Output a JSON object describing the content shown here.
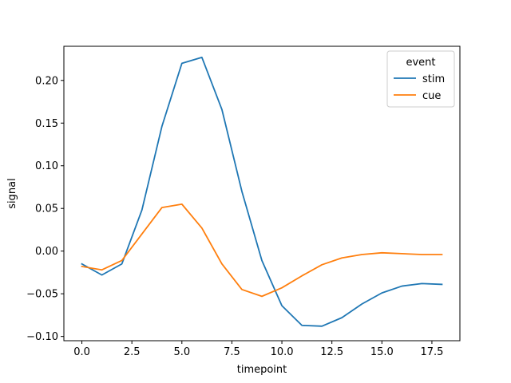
{
  "chart_data": {
    "type": "line",
    "title": "",
    "xlabel": "timepoint",
    "ylabel": "signal",
    "xlim": [
      -0.9,
      18.9
    ],
    "ylim": [
      -0.105,
      0.24
    ],
    "x_ticks": [
      0.0,
      2.5,
      5.0,
      7.5,
      10.0,
      12.5,
      15.0,
      17.5
    ],
    "x_tick_labels": [
      "0.0",
      "2.5",
      "5.0",
      "7.5",
      "10.0",
      "12.5",
      "15.0",
      "17.5"
    ],
    "y_ticks": [
      -0.1,
      -0.05,
      0.0,
      0.05,
      0.1,
      0.15,
      0.2
    ],
    "y_tick_labels": [
      "−0.10",
      "−0.05",
      "0.00",
      "0.05",
      "0.10",
      "0.15",
      "0.20"
    ],
    "grid": false,
    "legend": {
      "title": "event",
      "placement": "top-right"
    },
    "x": [
      0,
      1,
      2,
      3,
      4,
      5,
      6,
      7,
      8,
      9,
      10,
      11,
      12,
      13,
      14,
      15,
      16,
      17,
      18
    ],
    "series": [
      {
        "name": "stim",
        "color": "#1f77b4",
        "values": [
          -0.015,
          -0.028,
          -0.015,
          0.048,
          0.146,
          0.22,
          0.227,
          0.166,
          0.07,
          -0.011,
          -0.064,
          -0.087,
          -0.088,
          -0.078,
          -0.062,
          -0.049,
          -0.041,
          -0.038,
          -0.039
        ]
      },
      {
        "name": "cue",
        "color": "#ff7f0e",
        "values": [
          -0.018,
          -0.022,
          -0.011,
          0.02,
          0.051,
          0.055,
          0.027,
          -0.015,
          -0.045,
          -0.053,
          -0.043,
          -0.029,
          -0.016,
          -0.008,
          -0.004,
          -0.002,
          -0.003,
          -0.004,
          -0.004
        ]
      }
    ]
  }
}
